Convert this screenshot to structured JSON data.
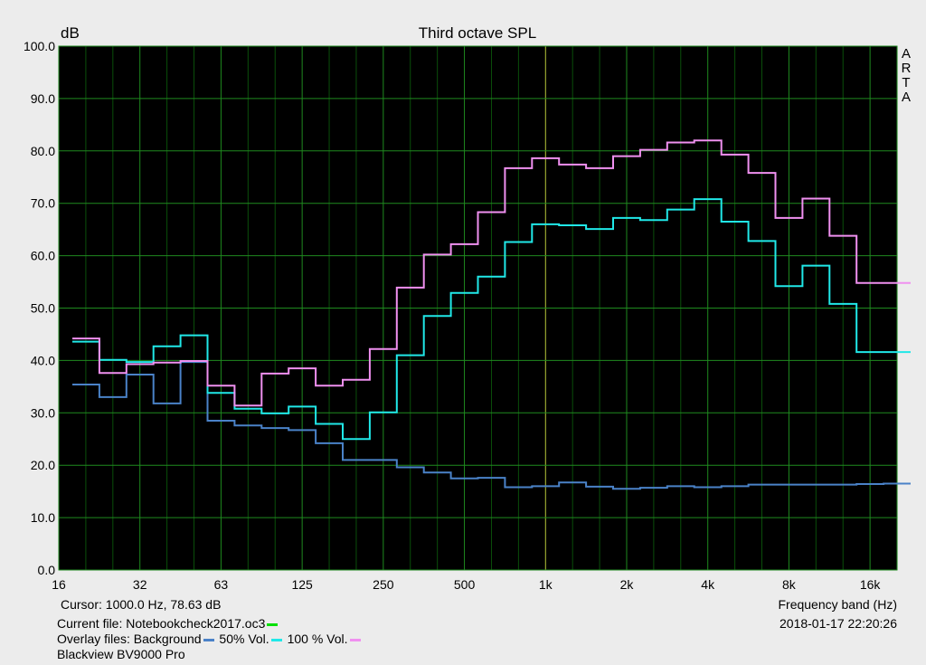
{
  "chart_data": {
    "type": "line",
    "title": "Third octave SPL",
    "ylabel": "dB",
    "xlabel": "Frequency band (Hz)",
    "ylim": [
      0,
      100
    ],
    "yticks": [
      "0.0",
      "10.0",
      "20.0",
      "30.0",
      "40.0",
      "50.0",
      "60.0",
      "70.0",
      "80.0",
      "90.0",
      "100.0"
    ],
    "xtick_labels": [
      "16",
      "32",
      "63",
      "125",
      "250",
      "500",
      "1k",
      "2k",
      "4k",
      "8k",
      "16k"
    ],
    "bands": [
      "20",
      "25",
      "31.5",
      "40",
      "50",
      "63",
      "80",
      "100",
      "125",
      "160",
      "200",
      "250",
      "315",
      "400",
      "500",
      "630",
      "800",
      "1k",
      "1.25k",
      "1.6k",
      "2k",
      "2.5k",
      "3.15k",
      "4k",
      "5k",
      "6.3k",
      "8k",
      "10k",
      "12.5k",
      "16k",
      "20k"
    ],
    "grid": true,
    "series": [
      {
        "name": "Background",
        "color": "#4a82c8",
        "values": [
          35.4,
          33.0,
          37.3,
          31.8,
          39.7,
          28.5,
          27.6,
          27.1,
          26.7,
          24.2,
          21.0,
          21.0,
          19.6,
          18.6,
          17.5,
          17.6,
          15.8,
          16.0,
          16.7,
          15.9,
          15.5,
          15.7,
          16.0,
          15.8,
          16.0,
          16.3,
          16.3,
          16.3,
          16.3,
          16.4,
          16.5
        ]
      },
      {
        "name": "50% Vol.",
        "color": "#20e8e8",
        "values": [
          43.6,
          40.1,
          39.7,
          42.7,
          44.8,
          33.8,
          30.8,
          29.9,
          31.2,
          27.9,
          25.0,
          30.1,
          41.0,
          48.5,
          52.9,
          56.0,
          62.6,
          66.0,
          65.8,
          65.1,
          67.2,
          66.8,
          68.8,
          70.8,
          66.5,
          62.8,
          54.2,
          58.1,
          50.8,
          41.6,
          41.6
        ]
      },
      {
        "name": "100 % Vol.",
        "color": "#f090f0",
        "values": [
          44.2,
          37.6,
          39.3,
          39.6,
          39.9,
          35.2,
          31.4,
          37.5,
          38.5,
          35.2,
          36.3,
          42.2,
          53.9,
          60.2,
          62.2,
          68.3,
          76.7,
          78.6,
          77.4,
          76.7,
          79.0,
          80.2,
          81.6,
          82.0,
          79.3,
          75.8,
          67.2,
          70.9,
          63.8,
          54.8,
          54.8
        ]
      }
    ],
    "current_color": "#00e000"
  },
  "labels": {
    "title": "Third octave SPL",
    "ylabel": "dB",
    "xlabel": "Frequency band (Hz)",
    "cursor": "Cursor:  1000.0 Hz, 78.63 dB",
    "current_file": "Current file: Notebookcheck2017.oc3",
    "overlay_prefix": "Overlay files: Background",
    "overlay_50": " 50% Vol.",
    "overlay_100": " 100 % Vol.",
    "timestamp": "2018-01-17  22:20:26",
    "device": "Blackview BV9000 Pro",
    "watermark": [
      "A",
      "R",
      "T",
      "A"
    ]
  }
}
